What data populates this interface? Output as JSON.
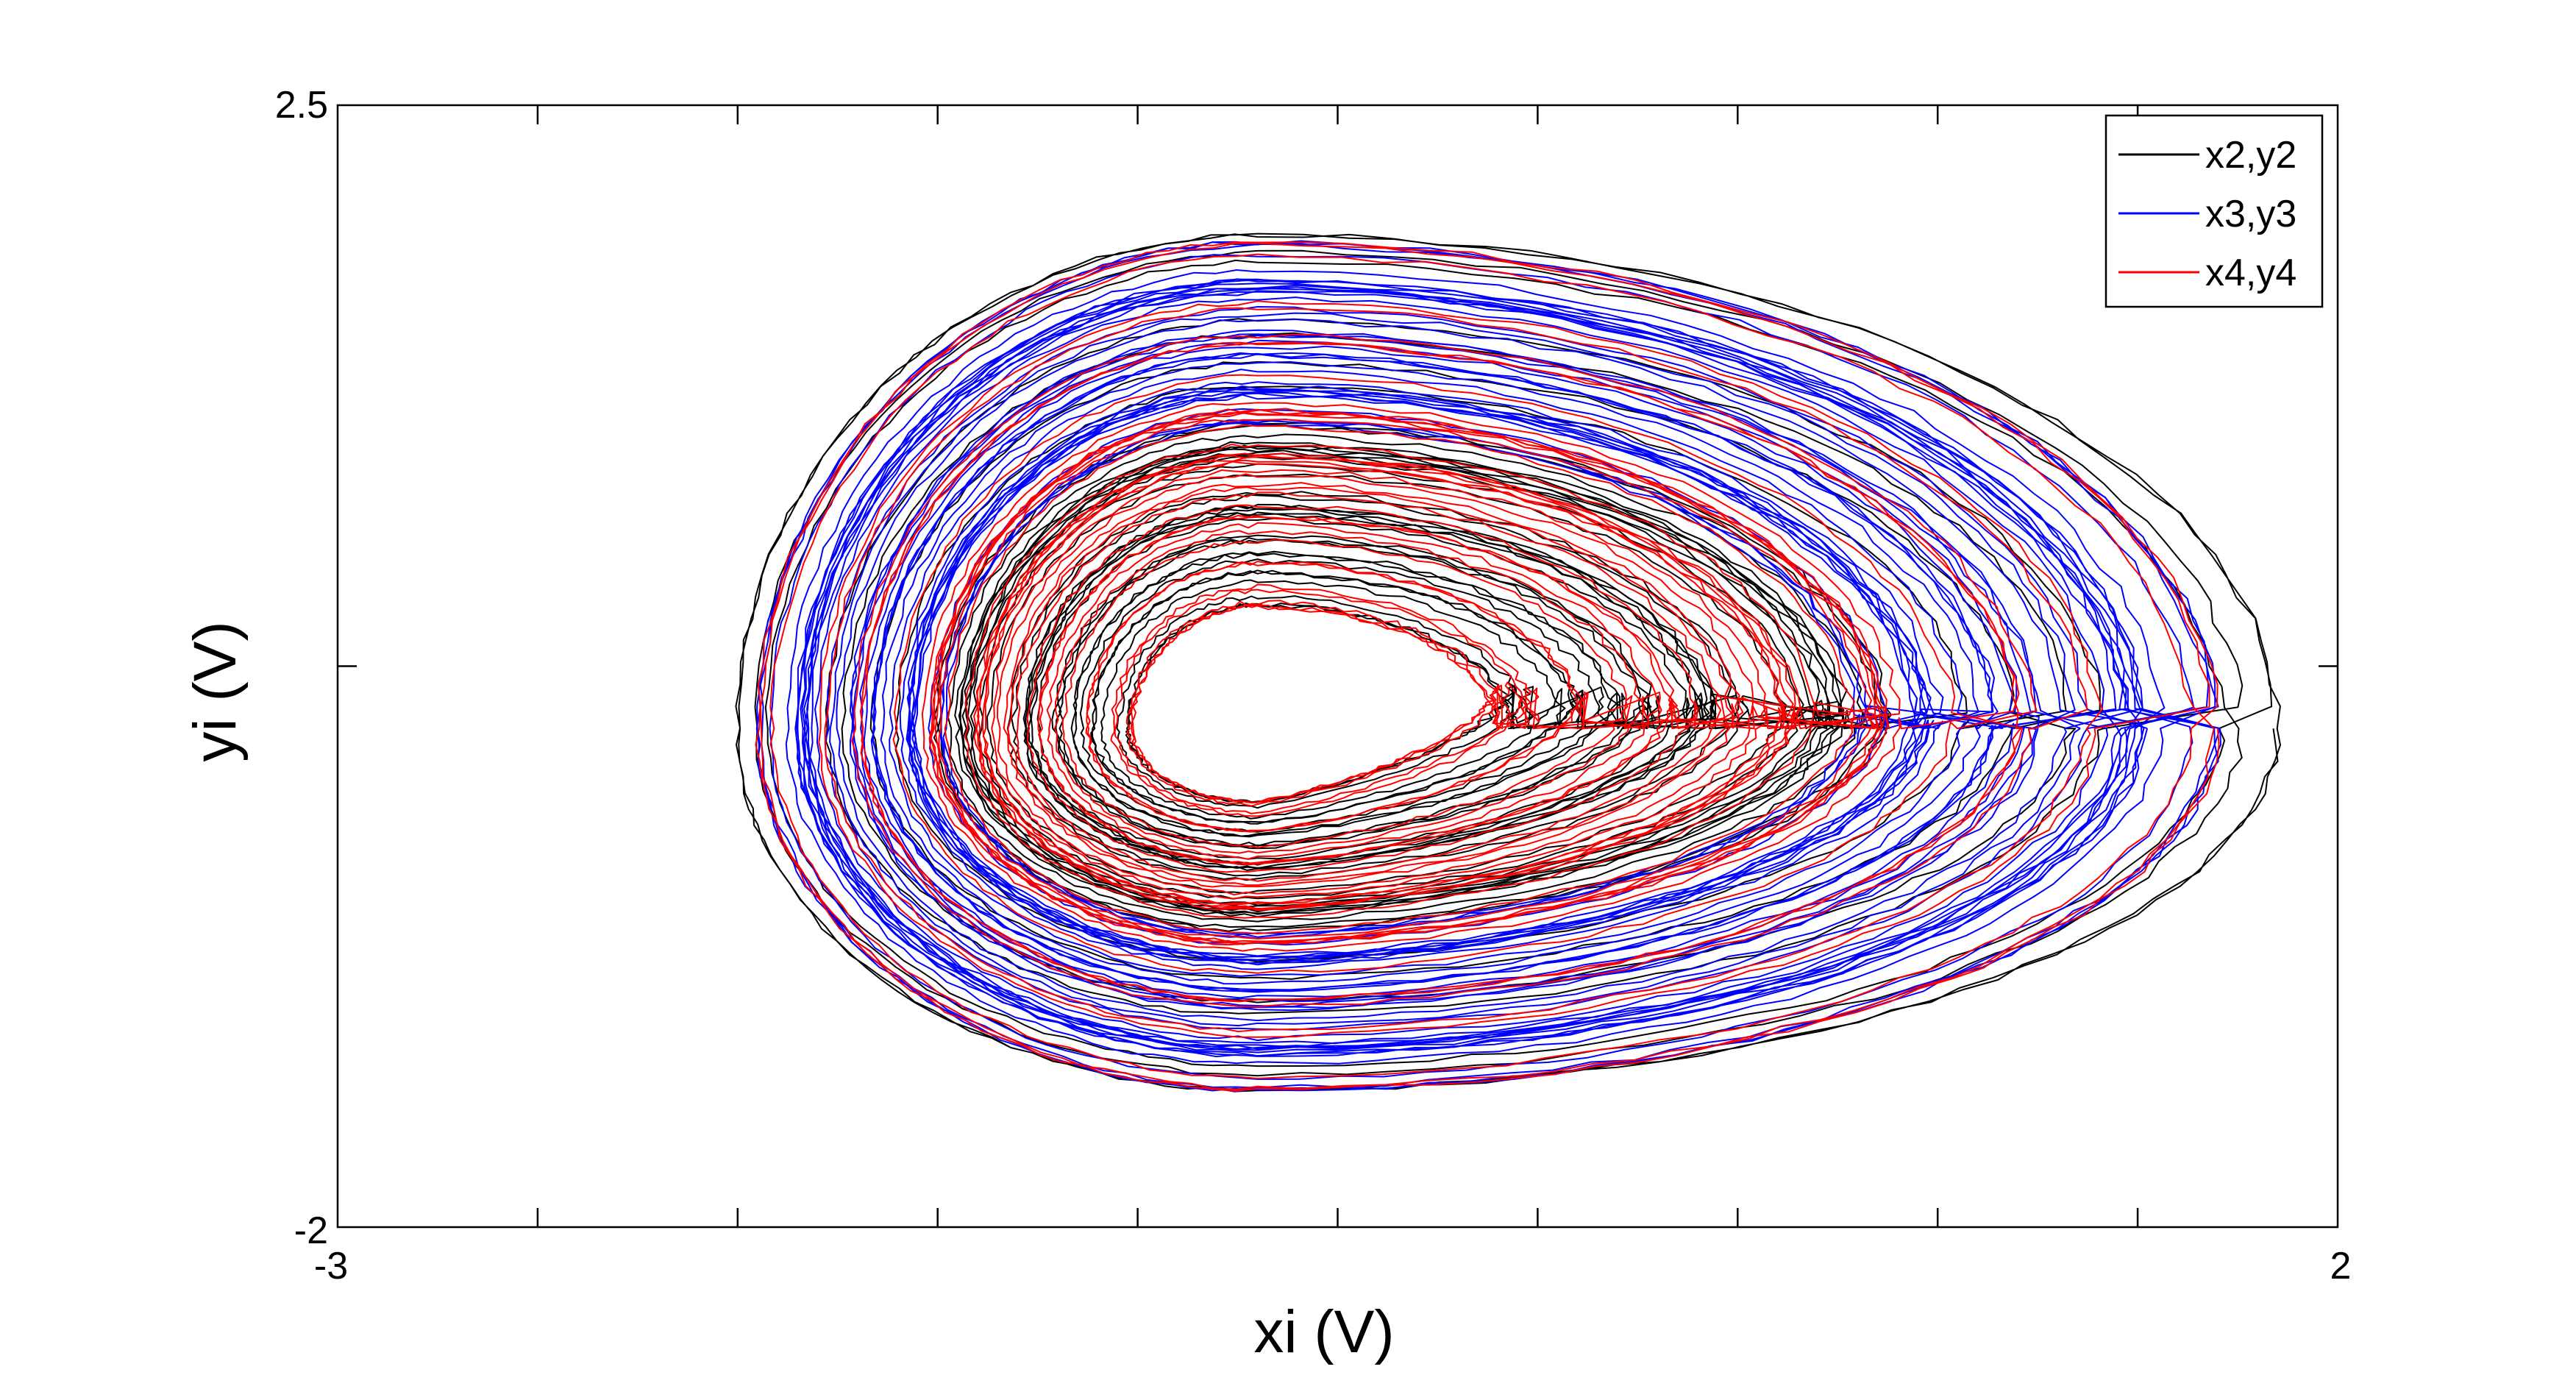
{
  "chart_data": {
    "type": "line",
    "title": "",
    "xlabel": "xi (V)",
    "ylabel": "yi (V)",
    "xlim": [
      -3,
      2
    ],
    "ylim": [
      -2,
      2.5
    ],
    "x_tick_labels": [
      "-3",
      "2"
    ],
    "y_tick_labels": [
      "-2",
      "2.5"
    ],
    "grid": false,
    "legend_position": "top-right",
    "series": [
      {
        "name": "x2,y2",
        "color": "#000000",
        "x_range": [
          -2.0,
          1.85
        ],
        "y_range": [
          -1.45,
          1.98
        ]
      },
      {
        "name": "x3,y3",
        "color": "#0000ff",
        "x_range": [
          -1.95,
          1.7
        ],
        "y_range": [
          -1.45,
          1.95
        ]
      },
      {
        "name": "x4,y4",
        "color": "#ff0000",
        "x_range": [
          -1.95,
          1.7
        ],
        "y_range": [
          -1.45,
          1.95
        ]
      }
    ]
  }
}
